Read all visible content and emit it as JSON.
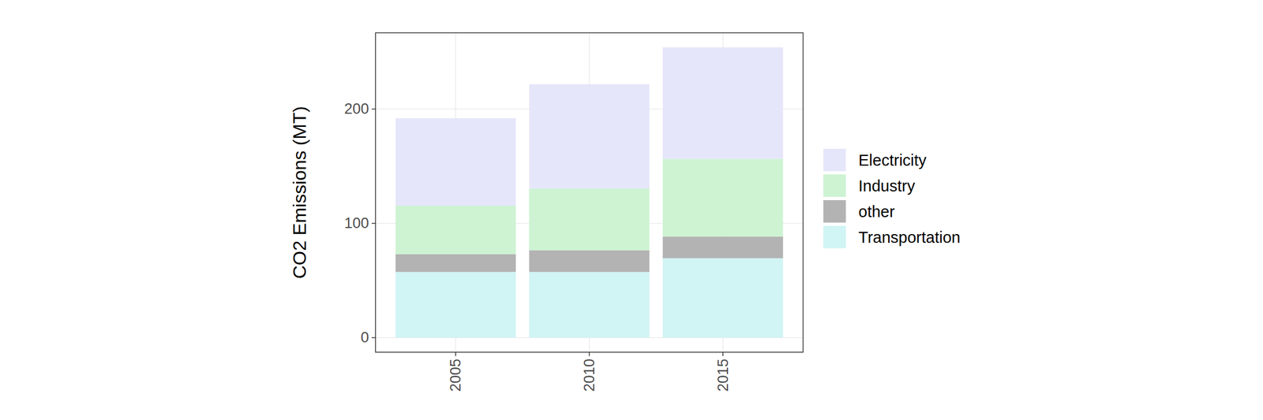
{
  "chart_data": {
    "type": "bar",
    "stacked": true,
    "grid": true,
    "legend": "right",
    "y_label": "CO2 Emissions (MT)",
    "categories": [
      "2005",
      "2010",
      "2015"
    ],
    "series": [
      {
        "name": "Electricity",
        "color": "#e6e6fa",
        "values": [
          76.5,
          91.3,
          97.5
        ]
      },
      {
        "name": "Industry",
        "color": "#cdf3d3",
        "values": [
          42.5,
          54,
          68
        ]
      },
      {
        "name": "other",
        "color": "#b3b3b3",
        "values": [
          15.5,
          19,
          19
        ]
      },
      {
        "name": "Transportation",
        "color": "#d1f4f5",
        "values": [
          57.5,
          57.5,
          69.5
        ]
      }
    ],
    "ylim": [
      -12.7,
      266.7
    ],
    "yticks": [
      0,
      100,
      200
    ]
  }
}
